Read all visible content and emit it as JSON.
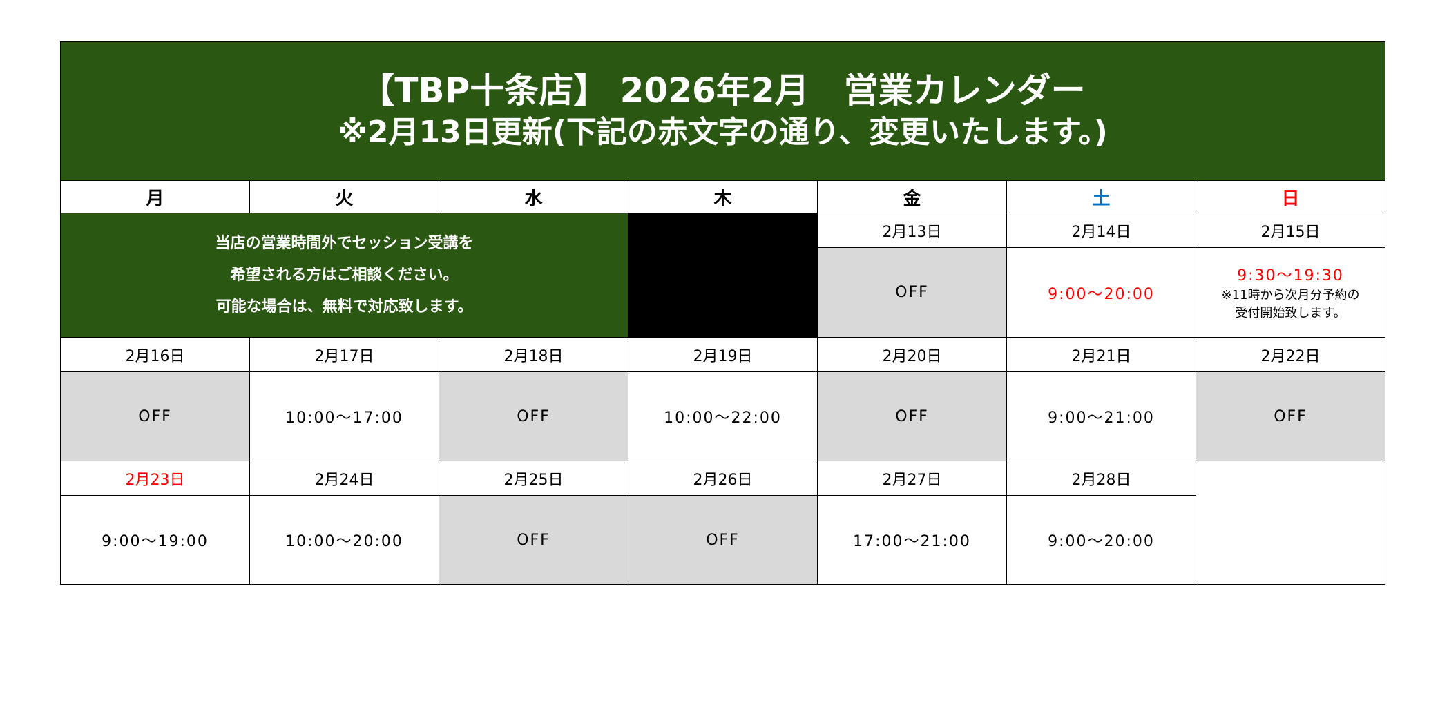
{
  "header": {
    "title": "【TBP十条店】 2026年2月　営業カレンダー",
    "subtitle": "※2月13日更新(下記の赤文字の通り、変更いたします。)"
  },
  "days": [
    "月",
    "火",
    "水",
    "木",
    "金",
    "土",
    "日"
  ],
  "colors": {
    "header_bg": "#2a5712",
    "off_bg": "#d9d9d9",
    "saturday": "#0070c0",
    "sunday_holiday": "#ff0000"
  },
  "notice": [
    "当店の営業時間外でセッション受講を",
    "希望される方はご相談ください。",
    "可能な場合は、無料で対応致します。"
  ],
  "week1": {
    "dates": [
      "2月13日",
      "2月14日",
      "2月15日"
    ],
    "hours": [
      "OFF",
      "9:00～20:00",
      "9:30～19:30"
    ],
    "note": [
      "※11時から次月分予約の",
      "受付開始致します。"
    ]
  },
  "week2": {
    "dates": [
      "2月16日",
      "2月17日",
      "2月18日",
      "2月19日",
      "2月20日",
      "2月21日",
      "2月22日"
    ],
    "hours": [
      "OFF",
      "10:00～17:00",
      "OFF",
      "10:00～22:00",
      "OFF",
      "9:00～21:00",
      "OFF"
    ]
  },
  "week3": {
    "dates": [
      "2月23日",
      "2月24日",
      "2月25日",
      "2月26日",
      "2月27日",
      "2月28日"
    ],
    "hours": [
      "9:00～19:00",
      "10:00～20:00",
      "OFF",
      "OFF",
      "17:00～21:00",
      "9:00～20:00"
    ]
  }
}
